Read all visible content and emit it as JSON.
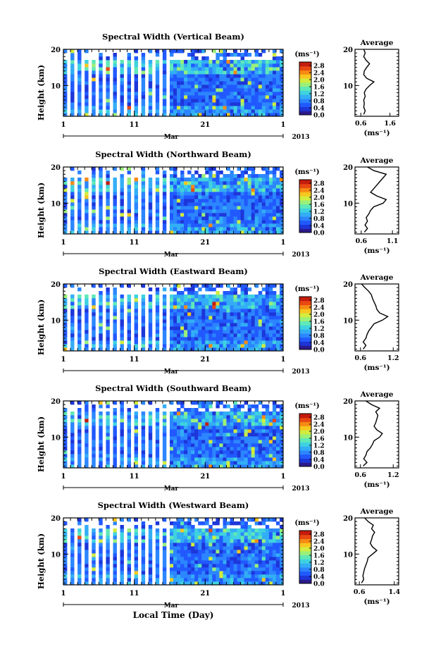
{
  "figure": {
    "xlabel": "Local Time (Day)",
    "year_label": "2013",
    "month_label": "Mar",
    "colorbar_title": "(ms⁻¹)",
    "average_title": "Average",
    "average_xlabel": "(ms⁻¹)",
    "colormap": [
      "#2b1a8c",
      "#1d36d9",
      "#2159ff",
      "#2c86ff",
      "#33aef5",
      "#3fd2e0",
      "#5fe8b8",
      "#9af07a",
      "#d2ec3f",
      "#f7c71f",
      "#f78b14",
      "#e84812",
      "#c41c0d"
    ]
  },
  "chart_data": [
    {
      "type": "heatmap",
      "title": "Spectral Width (Vertical Beam)",
      "ylabel": "Height (km)",
      "x_ticks": [
        "1",
        "11",
        "21",
        "1"
      ],
      "y_ticks": [
        "10",
        "20"
      ],
      "xlim_days": [
        1,
        32
      ],
      "ylim_km": [
        1.5,
        20
      ],
      "colorbar_ticks": [
        "0.0",
        "0.4",
        "0.8",
        "1.2",
        "1.6",
        "2.0",
        "2.4",
        "2.8"
      ],
      "clim": [
        0,
        3.0
      ],
      "avg_xticks": [
        "0.6",
        "1.6"
      ],
      "avg_xlim": [
        0.4,
        1.9
      ],
      "avg_profile": {
        "height": [
          2,
          3,
          4,
          5,
          6,
          7,
          8,
          9,
          10,
          11,
          12,
          13,
          14,
          15,
          16,
          17,
          18,
          19,
          20
        ],
        "value": [
          0.7,
          0.75,
          0.7,
          0.72,
          0.7,
          0.75,
          0.72,
          0.78,
          0.9,
          1.05,
          0.8,
          0.7,
          0.72,
          0.8,
          0.9,
          0.78,
          0.7,
          0.75,
          0.7
        ]
      }
    },
    {
      "type": "heatmap",
      "title": "Spectral Width (Northward Beam)",
      "ylabel": "Height (km)",
      "x_ticks": [
        "1",
        "11",
        "21",
        "1"
      ],
      "y_ticks": [
        "10",
        "20"
      ],
      "xlim_days": [
        1,
        32
      ],
      "ylim_km": [
        1.5,
        20
      ],
      "colorbar_ticks": [
        "0.0",
        "0.4",
        "0.8",
        "1.2",
        "1.6",
        "2.0",
        "2.4",
        "2.8"
      ],
      "clim": [
        0,
        3.0
      ],
      "avg_xticks": [
        "0.6",
        "1.1"
      ],
      "avg_xlim": [
        0.5,
        1.2
      ],
      "avg_profile": {
        "height": [
          2,
          3,
          4,
          5,
          6,
          7,
          8,
          9,
          10,
          11,
          12,
          13,
          14,
          15,
          16,
          17,
          18,
          19,
          20
        ],
        "value": [
          0.65,
          0.7,
          0.66,
          0.7,
          0.68,
          0.72,
          0.75,
          0.8,
          0.95,
          1.0,
          0.85,
          0.75,
          0.8,
          0.85,
          0.9,
          0.95,
          1.0,
          0.8,
          0.7
        ]
      }
    },
    {
      "type": "heatmap",
      "title": "Spectral Width (Eastward Beam)",
      "ylabel": "Height (km)",
      "x_ticks": [
        "1",
        "11",
        "21",
        "1"
      ],
      "y_ticks": [
        "10",
        "20"
      ],
      "xlim_days": [
        1,
        32
      ],
      "ylim_km": [
        1.5,
        20
      ],
      "colorbar_ticks": [
        "0.0",
        "0.4",
        "0.8",
        "1.2",
        "1.6",
        "2.0",
        "2.4",
        "2.8"
      ],
      "clim": [
        0,
        3.0
      ],
      "avg_xticks": [
        "0.6",
        "1.2"
      ],
      "avg_xlim": [
        0.5,
        1.3
      ],
      "avg_profile": {
        "height": [
          2,
          3,
          4,
          5,
          6,
          7,
          8,
          9,
          10,
          11,
          12,
          13,
          14,
          15,
          16,
          17,
          18,
          19,
          20
        ],
        "value": [
          0.65,
          0.7,
          0.65,
          0.7,
          0.72,
          0.75,
          0.8,
          0.85,
          1.0,
          1.1,
          0.95,
          0.9,
          0.88,
          0.85,
          0.82,
          0.8,
          0.75,
          0.68,
          0.62
        ]
      }
    },
    {
      "type": "heatmap",
      "title": "Spectral Width (Southward Beam)",
      "ylabel": "Height (km)",
      "x_ticks": [
        "1",
        "11",
        "21",
        "1"
      ],
      "y_ticks": [
        "10",
        "20"
      ],
      "xlim_days": [
        1,
        32
      ],
      "ylim_km": [
        1.5,
        20
      ],
      "colorbar_ticks": [
        "0.0",
        "0.4",
        "0.8",
        "1.2",
        "1.6",
        "2.0",
        "2.4",
        "2.8"
      ],
      "clim": [
        0,
        3.0
      ],
      "avg_xticks": [
        "0.6",
        "1.2"
      ],
      "avg_xlim": [
        0.5,
        1.3
      ],
      "avg_profile": {
        "height": [
          2,
          3,
          4,
          5,
          6,
          7,
          8,
          9,
          10,
          11,
          12,
          13,
          14,
          15,
          16,
          17,
          18,
          19,
          20
        ],
        "value": [
          0.65,
          0.72,
          0.66,
          0.7,
          0.72,
          0.78,
          0.82,
          0.85,
          0.95,
          1.0,
          0.9,
          0.85,
          0.88,
          0.9,
          0.92,
          0.88,
          0.95,
          0.8,
          0.7
        ]
      }
    },
    {
      "type": "heatmap",
      "title": "Spectral Width (Westward Beam)",
      "ylabel": "Height (km)",
      "x_ticks": [
        "1",
        "11",
        "21",
        "1"
      ],
      "y_ticks": [
        "10",
        "20"
      ],
      "xlim_days": [
        1,
        32
      ],
      "ylim_km": [
        1.5,
        20
      ],
      "colorbar_ticks": [
        "0.0",
        "0.4",
        "0.8",
        "1.2",
        "1.6",
        "2.0",
        "2.4",
        "2.8"
      ],
      "clim": [
        0,
        3.0
      ],
      "avg_xticks": [
        "0.6",
        "1.4"
      ],
      "avg_xlim": [
        0.5,
        1.5
      ],
      "avg_profile": {
        "height": [
          2,
          3,
          4,
          5,
          6,
          7,
          8,
          9,
          10,
          11,
          12,
          13,
          14,
          15,
          16,
          17,
          18,
          19,
          20
        ],
        "value": [
          0.65,
          0.7,
          0.68,
          0.7,
          0.72,
          0.75,
          0.78,
          0.8,
          0.9,
          1.0,
          0.9,
          0.85,
          0.88,
          0.9,
          0.95,
          0.88,
          0.92,
          0.8,
          0.72
        ]
      }
    }
  ]
}
